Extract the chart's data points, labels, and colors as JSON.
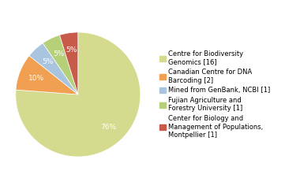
{
  "labels": [
    "Centre for Biodiversity\nGenomics [16]",
    "Canadian Centre for DNA\nBarcoding [2]",
    "Mined from GenBank, NCBI [1]",
    "Fujian Agriculture and\nForestry University [1]",
    "Center for Biology and\nManagement of Populations,\nMontpellier [1]"
  ],
  "values": [
    16,
    2,
    1,
    1,
    1
  ],
  "colors": [
    "#d4db8e",
    "#f0a050",
    "#a8c4df",
    "#b5d078",
    "#c85a4a"
  ],
  "pct_colors": [
    "white",
    "white",
    "white",
    "white",
    "white"
  ],
  "background_color": "#ffffff",
  "startangle": 90,
  "pctdistance": 0.72,
  "legend_fontsize": 6.0,
  "pct_fontsize": 6.5
}
